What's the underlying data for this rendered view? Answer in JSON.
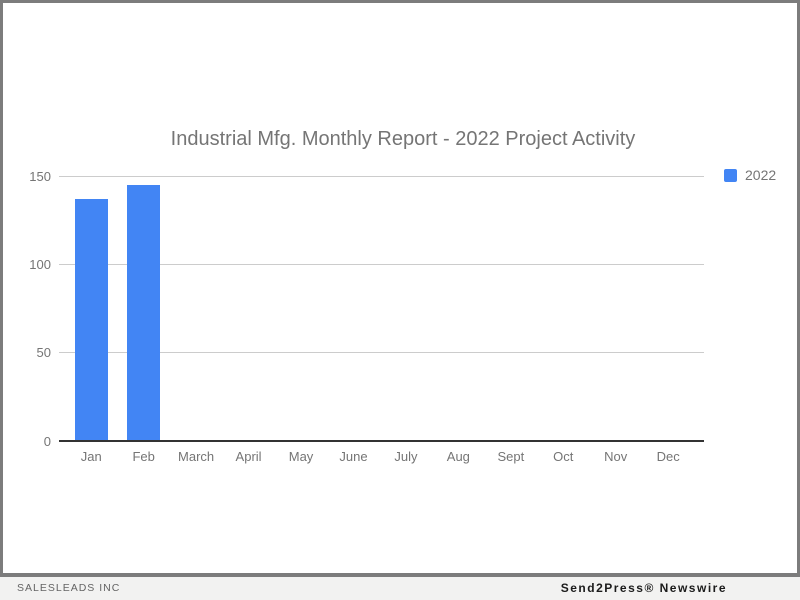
{
  "chart_data": {
    "type": "bar",
    "title": "Industrial Mfg. Monthly Report - 2022 Project Activity",
    "categories": [
      "Jan",
      "Feb",
      "March",
      "April",
      "May",
      "June",
      "July",
      "Aug",
      "Sept",
      "Oct",
      "Nov",
      "Dec"
    ],
    "series": [
      {
        "name": "2022",
        "color": "#4285f4",
        "values": [
          137,
          145,
          0,
          0,
          0,
          0,
          0,
          0,
          0,
          0,
          0,
          0
        ]
      }
    ],
    "xlabel": "",
    "ylabel": "",
    "ylim": [
      0,
      150
    ],
    "yticks": [
      0,
      50,
      100,
      150
    ],
    "grid": true,
    "legend_position": "right"
  },
  "footer": {
    "left_text": "SALESLEADS INC",
    "right_text": "Send2Press® Newswire"
  },
  "colors": {
    "bar": "#4285f4",
    "title_text": "#757575",
    "axis_text": "#757575",
    "gridline": "#cccccc",
    "axis_line": "#333333",
    "frame_border": "#7c7c7c",
    "footer_bg": "#f2f2f1",
    "footer_left_text": "#646464",
    "footer_right_text": "#1b1b1b"
  }
}
